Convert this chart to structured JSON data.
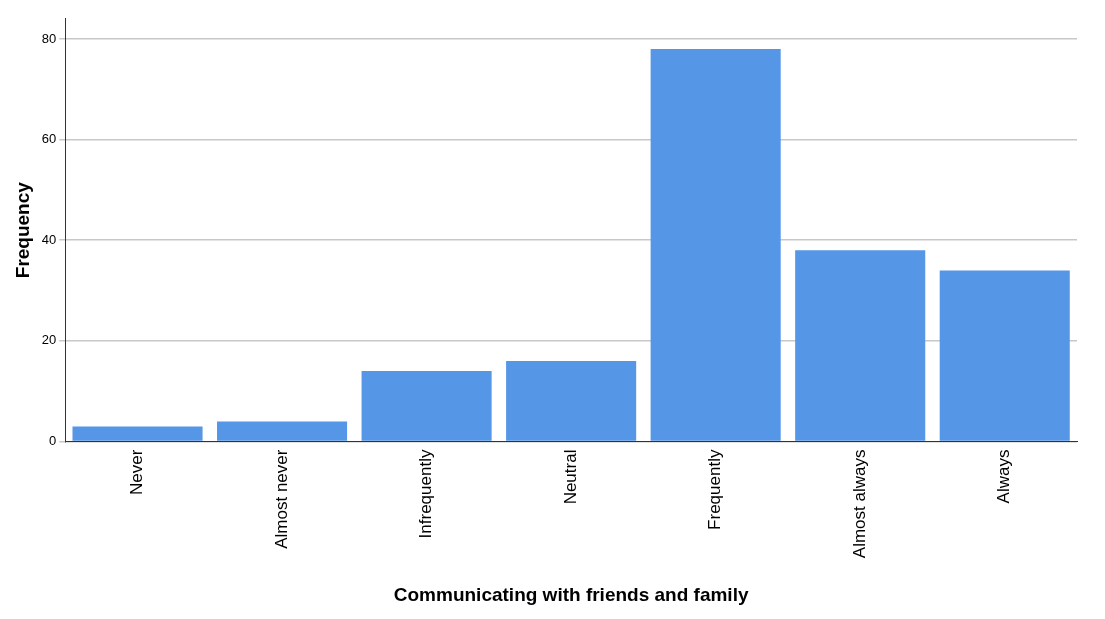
{
  "chart_data": {
    "type": "bar",
    "xlabel": "Communicating with friends and family",
    "ylabel": "Frequency",
    "categories": [
      "Never",
      "Almost never",
      "Infrequently",
      "Neutral",
      "Frequently",
      "Almost always",
      "Always"
    ],
    "values": [
      3,
      4,
      14,
      16,
      78,
      38,
      34
    ],
    "color": "#5596e6",
    "ylim": [
      0,
      84
    ],
    "yticks": [
      0,
      20,
      40,
      60,
      80
    ],
    "grid": "y",
    "legend": false
  }
}
